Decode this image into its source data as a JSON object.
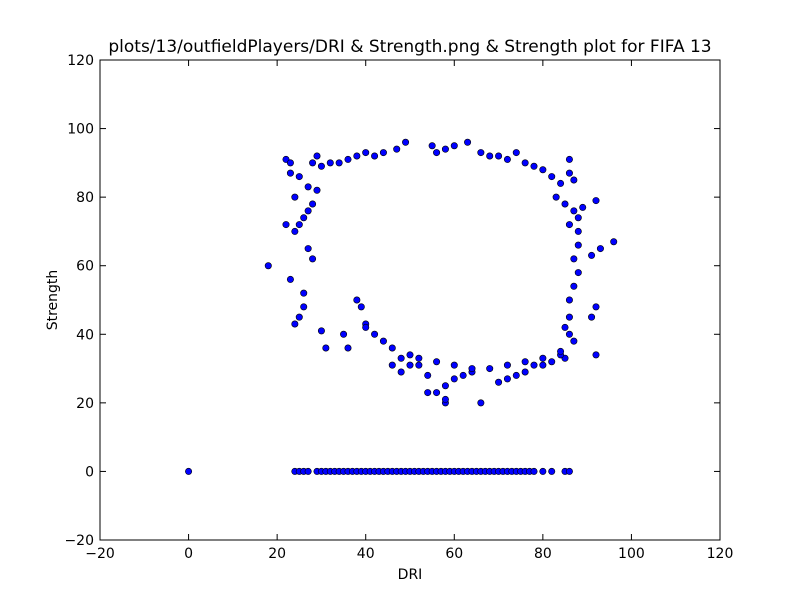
{
  "chart_data": {
    "type": "scatter",
    "title": "plots/13/outfieldPlayers/DRI & Strength.png & Strength plot for FIFA 13",
    "xlabel": "DRI",
    "ylabel": "Strength",
    "xlim": [
      -20,
      120
    ],
    "ylim": [
      -20,
      120
    ],
    "xticks": [
      -20,
      0,
      20,
      40,
      60,
      80,
      100,
      120
    ],
    "yticks": [
      -20,
      0,
      20,
      40,
      60,
      80,
      100,
      120
    ],
    "tick_labels_x": [
      "−20",
      "0",
      "20",
      "40",
      "60",
      "80",
      "100",
      "120"
    ],
    "tick_labels_y": [
      "−20",
      "0",
      "20",
      "40",
      "60",
      "80",
      "100",
      "120"
    ],
    "grid": false,
    "marker_color": "#0000ff",
    "marker_edge_color": "#000000",
    "series": [
      {
        "points": [
          [
            0,
            0
          ],
          [
            24,
            0
          ],
          [
            25,
            0
          ],
          [
            26,
            0
          ],
          [
            27,
            0
          ],
          [
            29,
            0
          ],
          [
            30,
            0
          ],
          [
            31,
            0
          ],
          [
            32,
            0
          ],
          [
            33,
            0
          ],
          [
            34,
            0
          ],
          [
            35,
            0
          ],
          [
            36,
            0
          ],
          [
            37,
            0
          ],
          [
            38,
            0
          ],
          [
            39,
            0
          ],
          [
            40,
            0
          ],
          [
            41,
            0
          ],
          [
            42,
            0
          ],
          [
            43,
            0
          ],
          [
            44,
            0
          ],
          [
            45,
            0
          ],
          [
            46,
            0
          ],
          [
            47,
            0
          ],
          [
            48,
            0
          ],
          [
            49,
            0
          ],
          [
            50,
            0
          ],
          [
            51,
            0
          ],
          [
            52,
            0
          ],
          [
            53,
            0
          ],
          [
            54,
            0
          ],
          [
            55,
            0
          ],
          [
            56,
            0
          ],
          [
            57,
            0
          ],
          [
            58,
            0
          ],
          [
            59,
            0
          ],
          [
            60,
            0
          ],
          [
            61,
            0
          ],
          [
            62,
            0
          ],
          [
            63,
            0
          ],
          [
            64,
            0
          ],
          [
            65,
            0
          ],
          [
            66,
            0
          ],
          [
            67,
            0
          ],
          [
            68,
            0
          ],
          [
            69,
            0
          ],
          [
            70,
            0
          ],
          [
            71,
            0
          ],
          [
            72,
            0
          ],
          [
            73,
            0
          ],
          [
            74,
            0
          ],
          [
            75,
            0
          ],
          [
            76,
            0
          ],
          [
            77,
            0
          ],
          [
            78,
            0
          ],
          [
            80,
            0
          ],
          [
            82,
            0
          ],
          [
            85,
            0
          ],
          [
            86,
            0
          ],
          [
            18,
            60
          ],
          [
            22,
            91
          ],
          [
            23,
            90
          ],
          [
            23,
            87
          ],
          [
            24,
            80
          ],
          [
            25,
            86
          ],
          [
            24,
            70
          ],
          [
            25,
            72
          ],
          [
            24,
            43
          ],
          [
            25,
            45
          ],
          [
            26,
            48
          ],
          [
            26,
            52
          ],
          [
            27,
            65
          ],
          [
            28,
            62
          ],
          [
            30,
            41
          ],
          [
            31,
            36
          ],
          [
            36,
            36
          ],
          [
            39,
            48
          ],
          [
            40,
            43
          ],
          [
            38,
            50
          ],
          [
            35,
            40
          ],
          [
            23,
            56
          ],
          [
            22,
            72
          ],
          [
            26,
            74
          ],
          [
            27,
            76
          ],
          [
            28,
            78
          ],
          [
            29,
            82
          ],
          [
            27,
            83
          ],
          [
            28,
            90
          ],
          [
            29,
            92
          ],
          [
            96,
            67
          ],
          [
            93,
            65
          ],
          [
            92,
            79
          ],
          [
            91,
            63
          ],
          [
            91,
            45
          ],
          [
            92,
            48
          ],
          [
            92,
            34
          ],
          [
            88,
            74
          ],
          [
            89,
            77
          ],
          [
            87,
            85
          ],
          [
            86,
            91
          ],
          [
            86,
            87
          ],
          [
            85,
            33
          ],
          [
            84,
            34
          ],
          [
            86,
            40
          ],
          [
            86,
            45
          ],
          [
            85,
            42
          ],
          [
            87,
            38
          ],
          [
            54,
            23
          ],
          [
            56,
            23
          ],
          [
            58,
            20
          ],
          [
            58,
            21
          ],
          [
            66,
            20
          ],
          [
            58,
            25
          ],
          [
            60,
            27
          ],
          [
            62,
            28
          ],
          [
            64,
            29
          ],
          [
            70,
            26
          ],
          [
            72,
            27
          ],
          [
            74,
            28
          ],
          [
            76,
            29
          ],
          [
            78,
            31
          ],
          [
            80,
            31
          ],
          [
            82,
            32
          ],
          [
            54,
            28
          ],
          [
            52,
            31
          ],
          [
            50,
            31
          ],
          [
            49,
            96
          ],
          [
            55,
            95
          ],
          [
            58,
            94
          ],
          [
            63,
            96
          ],
          [
            60,
            95
          ],
          [
            56,
            93
          ],
          [
            47,
            94
          ],
          [
            44,
            93
          ],
          [
            42,
            92
          ],
          [
            40,
            93
          ],
          [
            38,
            92
          ],
          [
            36,
            91
          ],
          [
            34,
            90
          ],
          [
            32,
            90
          ],
          [
            30,
            89
          ],
          [
            66,
            93
          ],
          [
            68,
            92
          ],
          [
            70,
            92
          ],
          [
            72,
            91
          ],
          [
            74,
            93
          ],
          [
            76,
            90
          ],
          [
            78,
            89
          ],
          [
            80,
            88
          ],
          [
            82,
            86
          ],
          [
            84,
            84
          ],
          [
            83,
            80
          ],
          [
            85,
            78
          ],
          [
            87,
            76
          ],
          [
            86,
            72
          ],
          [
            88,
            70
          ],
          [
            88,
            66
          ],
          [
            87,
            62
          ],
          [
            88,
            58
          ],
          [
            87,
            54
          ],
          [
            86,
            50
          ],
          [
            50,
            34
          ],
          [
            48,
            33
          ],
          [
            46,
            36
          ],
          [
            44,
            38
          ],
          [
            42,
            40
          ],
          [
            40,
            42
          ],
          [
            46,
            31
          ],
          [
            48,
            29
          ],
          [
            52,
            33
          ],
          [
            56,
            32
          ],
          [
            60,
            31
          ],
          [
            64,
            30
          ],
          [
            68,
            30
          ],
          [
            72,
            31
          ],
          [
            76,
            32
          ],
          [
            80,
            33
          ],
          [
            84,
            35
          ]
        ]
      }
    ]
  }
}
